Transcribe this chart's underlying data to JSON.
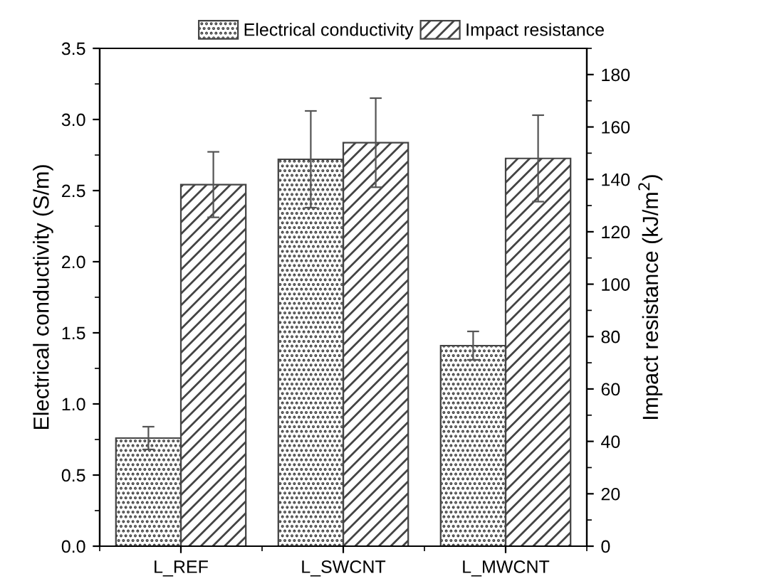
{
  "chart_data": {
    "type": "bar",
    "categories": [
      "L_REF",
      "L_SWCNT",
      "L_MWCNT"
    ],
    "ylabel": "Electrical conductivity (S/m)",
    "y2label": "Impact resistance (kJ/m$^{2}$)",
    "series": [
      {
        "name": "Electrical conductivity",
        "color": "#444444",
        "values": [
          0.76,
          2.72,
          1.41
        ],
        "errors": [
          0.08,
          0.34,
          0.1
        ]
      },
      {
        "name": "Impact resistance",
        "color": "#444444",
        "values": [
          138,
          154,
          148
        ],
        "errors": [
          12.5,
          17,
          16.5
        ],
        "axis": "y2"
      }
    ],
    "ylim": [
      0,
      3.5
    ],
    "yticks": [
      {
        "value": 0,
        "label": "0.0"
      },
      0.5,
      {
        "value": 1,
        "label": "1.0"
      },
      1.5,
      {
        "value": 2,
        "label": "2.0"
      },
      2.5,
      {
        "value": 3,
        "label": "3.0"
      },
      3.5
    ],
    "y2lim": [
      0,
      190
    ],
    "y2ticks": [
      0,
      20,
      40,
      60,
      80,
      100,
      120,
      140,
      160,
      180
    ],
    "legend": "top",
    "grid": false
  }
}
